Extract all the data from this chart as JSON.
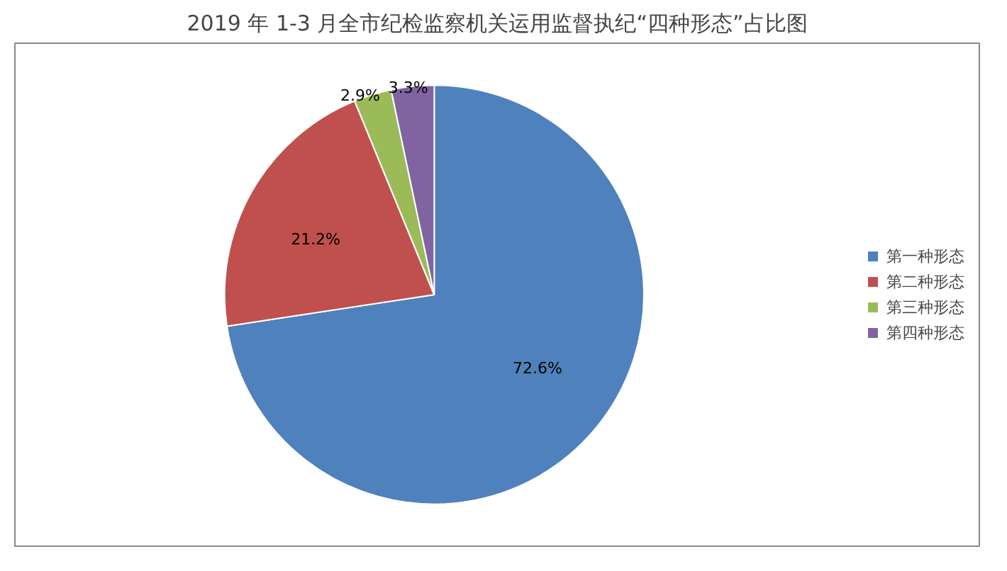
{
  "chart_data": {
    "type": "pie",
    "title": "2019 年 1-3 月全市纪检监察机关运用监督执纪“四种形态”占比图",
    "categories": [
      "第一种形态",
      "第二种形态",
      "第三种形态",
      "第四种形态"
    ],
    "values": [
      72.6,
      21.2,
      2.9,
      3.3
    ],
    "colors": [
      "#4f81bd",
      "#c0504d",
      "#9bbb59",
      "#8064a2"
    ],
    "value_labels": [
      "72.6%",
      "21.2%",
      "2.9%",
      "3.3%"
    ],
    "legend": "right"
  }
}
